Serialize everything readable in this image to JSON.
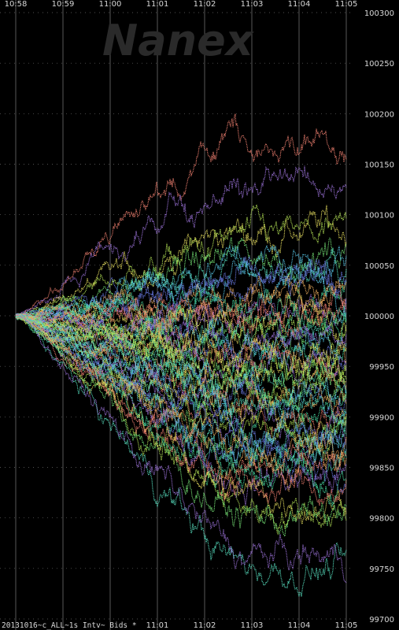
{
  "watermark": "Nanex",
  "footer_label": "20131016~c_ALL~1s Intv~ Bids *",
  "colors": {
    "background": "#000000",
    "grid": "#6e6e6e",
    "text": "#d8d8d8",
    "series_palette": [
      "#f08070",
      "#9b72d8",
      "#e8e060",
      "#b8e858",
      "#78e878",
      "#58e0c0",
      "#58c8e8",
      "#6878e0",
      "#f0b060",
      "#48d8a0"
    ]
  },
  "chart_data": {
    "type": "line",
    "title": "",
    "xlabel": "",
    "ylabel": "",
    "x_ticks_top": [
      "10:58",
      "10:59",
      "11:00",
      "11:01",
      "11:02",
      "11:03",
      "11:04",
      "11:05"
    ],
    "x_ticks_bottom": [
      "11:01",
      "11:02",
      "11:03",
      "11:04",
      "11:05"
    ],
    "y_ticks": [
      100300,
      100250,
      100200,
      100150,
      100100,
      100050,
      100000,
      99950,
      99900,
      99850,
      99800,
      99750,
      99700
    ],
    "ylim": [
      99700,
      100300
    ],
    "xlim_minutes": [
      0,
      7
    ],
    "grid": true,
    "legend": "none",
    "series_count": 62,
    "series_end_values": [
      100165,
      100130,
      100085,
      100075,
      100060,
      100045,
      100035,
      100030,
      100020,
      100015,
      100010,
      100000,
      99995,
      99990,
      99985,
      99980,
      99975,
      99970,
      99965,
      99960,
      99955,
      99950,
      99945,
      99940,
      99935,
      99930,
      99925,
      99920,
      99915,
      99910,
      99905,
      99895,
      99890,
      99885,
      99880,
      99870,
      99865,
      99860,
      99855,
      99850,
      99845,
      99840,
      99820,
      99810,
      99800,
      99750,
      100055,
      100040,
      100025,
      100005,
      99998,
      99978,
      99962,
      99948,
      99932,
      99918,
      99900,
      99875,
      99868,
      99842,
      99830,
      99760
    ]
  }
}
